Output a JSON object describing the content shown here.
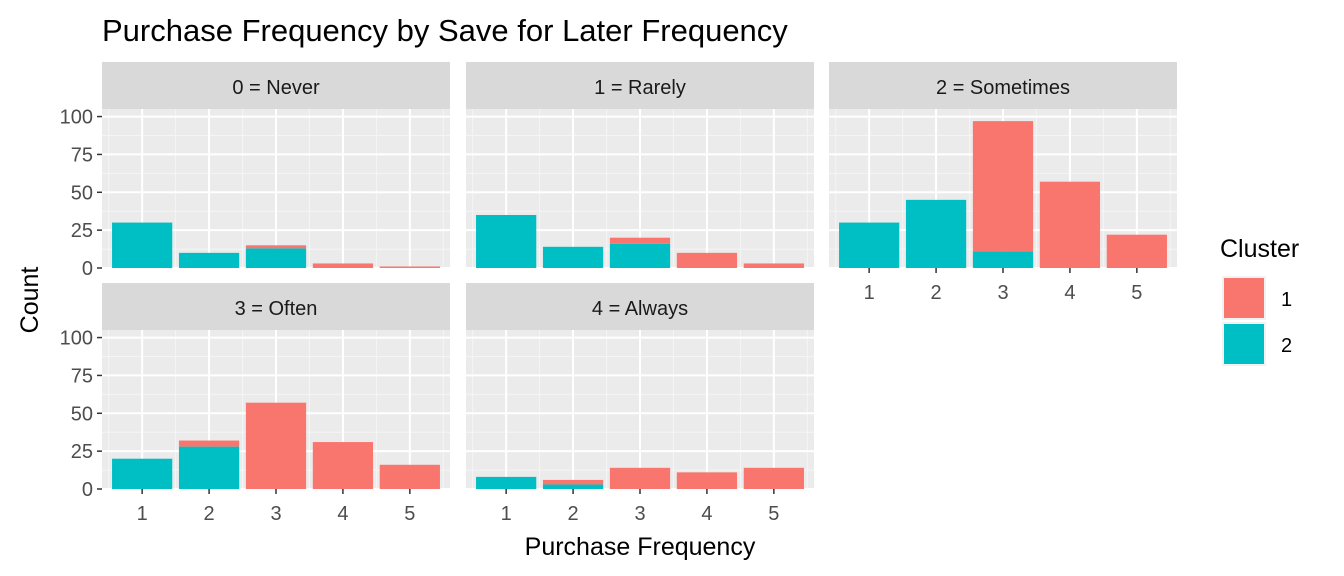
{
  "chart_data": {
    "type": "bar",
    "stacked": true,
    "title": "Purchase Frequency by Save for Later Frequency",
    "xlabel": "Purchase Frequency",
    "ylabel": "Count",
    "x_categories": [
      "1",
      "2",
      "3",
      "4",
      "5"
    ],
    "y_ticks": [
      "0",
      "25",
      "50",
      "75",
      "100"
    ],
    "ylim": [
      0,
      105
    ],
    "legend": {
      "title": "Cluster",
      "position": "right",
      "entries": [
        {
          "label": "1",
          "color": "#F8766D"
        },
        {
          "label": "2",
          "color": "#00BFC4"
        }
      ]
    },
    "panels": [
      {
        "label": "0 = Never",
        "series": [
          {
            "name": "1",
            "color": "#F8766D",
            "values": [
              0,
              0,
              2,
              3,
              1
            ]
          },
          {
            "name": "2",
            "color": "#00BFC4",
            "values": [
              30,
              10,
              13,
              0,
              0
            ]
          }
        ]
      },
      {
        "label": "1 = Rarely",
        "series": [
          {
            "name": "1",
            "color": "#F8766D",
            "values": [
              0,
              0,
              4,
              10,
              3
            ]
          },
          {
            "name": "2",
            "color": "#00BFC4",
            "values": [
              35,
              14,
              16,
              0,
              0
            ]
          }
        ]
      },
      {
        "label": "2 = Sometimes",
        "series": [
          {
            "name": "1",
            "color": "#F8766D",
            "values": [
              0,
              0,
              86,
              57,
              22
            ]
          },
          {
            "name": "2",
            "color": "#00BFC4",
            "values": [
              30,
              45,
              11,
              0,
              0
            ]
          }
        ]
      },
      {
        "label": "3 = Often",
        "series": [
          {
            "name": "1",
            "color": "#F8766D",
            "values": [
              0,
              4,
              57,
              31,
              16
            ]
          },
          {
            "name": "2",
            "color": "#00BFC4",
            "values": [
              20,
              28,
              0,
              0,
              0
            ]
          }
        ]
      },
      {
        "label": "4 = Always",
        "series": [
          {
            "name": "1",
            "color": "#F8766D",
            "values": [
              0,
              3,
              14,
              11,
              14
            ]
          },
          {
            "name": "2",
            "color": "#00BFC4",
            "values": [
              8,
              3,
              0,
              0,
              0
            ]
          }
        ]
      }
    ]
  }
}
